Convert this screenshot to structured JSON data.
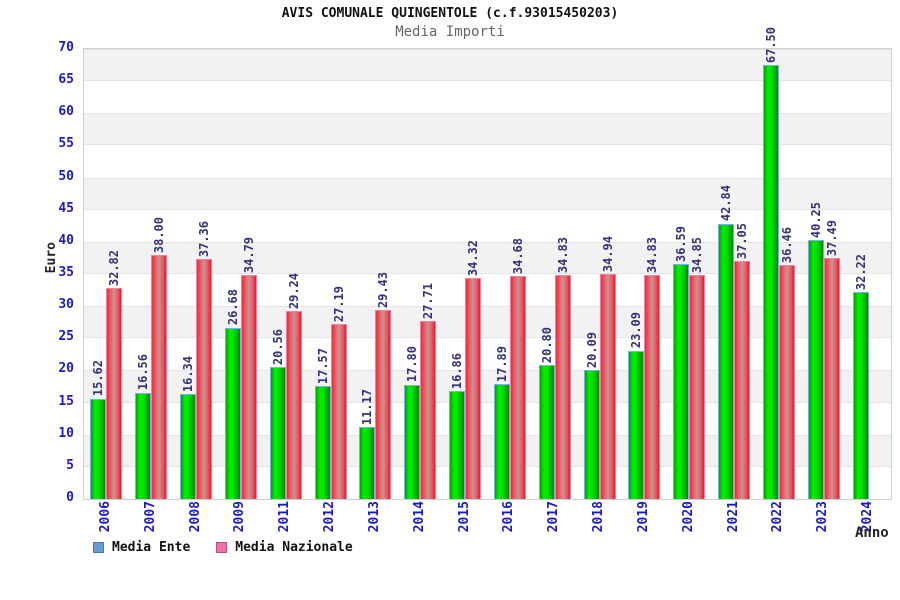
{
  "title": "AVIS COMUNALE QUINGENTOLE (c.f.93015450203)",
  "subtitle": "Media Importi",
  "axis": {
    "ylabel": "Euro",
    "xlabel": "Anno"
  },
  "legend": {
    "items": [
      {
        "label": "Media Ente",
        "swatch_color": "#6b9bd2"
      },
      {
        "label": "Media Nazionale",
        "swatch_color": "#ef6fa9"
      }
    ]
  },
  "colors": {
    "tick_label": "#1a1acd",
    "value_label": "#333377",
    "band_gray": "#f2f2f2",
    "plot_border": "#cfcfcf",
    "bar_green_mid": "#00f000",
    "bar_red_mid": "#ce9194",
    "bar_green_border": "#7cb0e3",
    "bar_red_border": "#f07fa8"
  },
  "chart_data": {
    "type": "bar",
    "title": "AVIS COMUNALE QUINGENTOLE (c.f.93015450203)",
    "subtitle": "Media Importi",
    "xlabel": "Anno",
    "ylabel": "Euro",
    "ylim": [
      0,
      70
    ],
    "ytick_step": 5,
    "grid": "horizontal-bands-alternating",
    "legend_position": "bottom-left",
    "value_label_format": "2-decimals-rotated-90",
    "categories": [
      "2006",
      "2007",
      "2008",
      "2009",
      "2011",
      "2012",
      "2013",
      "2014",
      "2015",
      "2016",
      "2017",
      "2018",
      "2019",
      "2020",
      "2021",
      "2022",
      "2023",
      "2024"
    ],
    "series": [
      {
        "name": "Media Ente",
        "bar_style": "green-cylinder",
        "values": [
          15.62,
          16.56,
          16.34,
          26.68,
          20.56,
          17.57,
          11.17,
          17.8,
          16.86,
          17.89,
          20.8,
          20.09,
          23.09,
          36.59,
          42.84,
          67.5,
          40.25,
          32.22
        ]
      },
      {
        "name": "Media Nazionale",
        "bar_style": "red-cylinder",
        "values": [
          32.82,
          38.0,
          37.36,
          34.79,
          29.24,
          27.19,
          29.43,
          27.71,
          34.32,
          34.68,
          34.83,
          34.94,
          34.83,
          34.85,
          37.05,
          36.46,
          37.49,
          null
        ]
      }
    ]
  }
}
